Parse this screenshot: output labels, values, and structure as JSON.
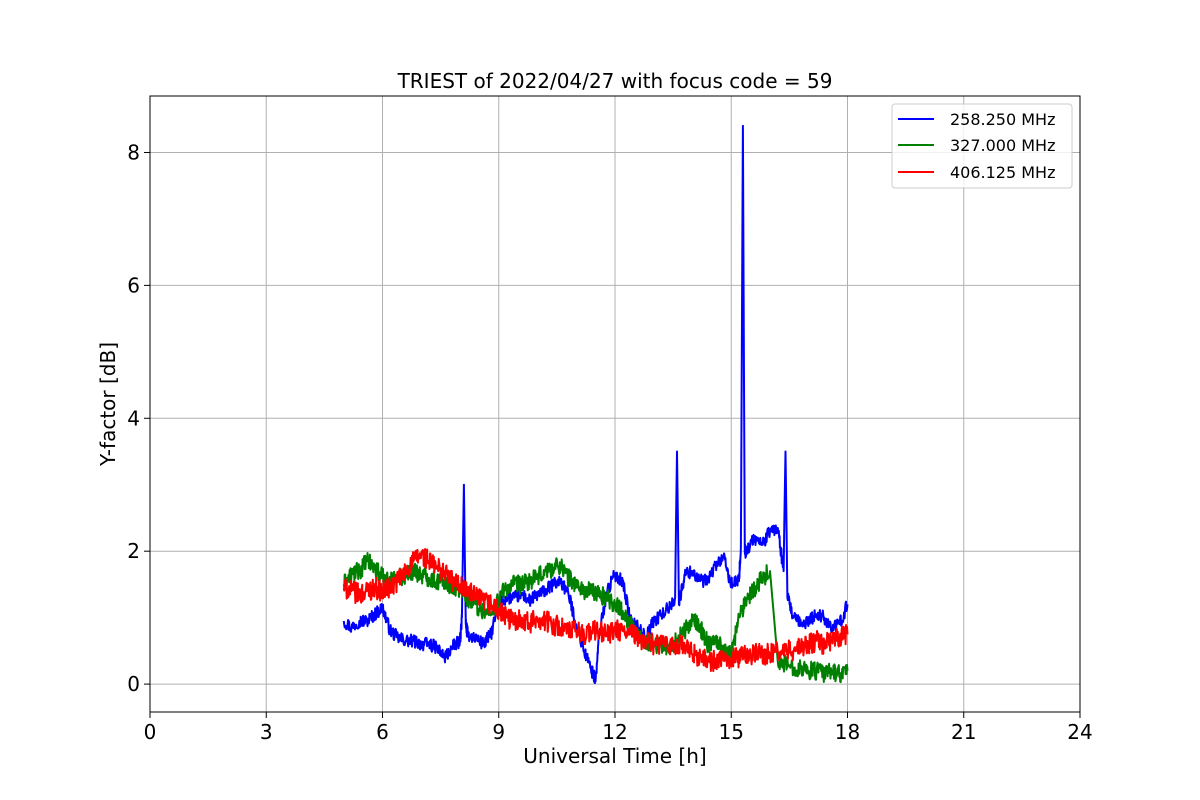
{
  "chart_data": {
    "type": "line",
    "title": "TRIEST of 2022/04/27 with focus code = 59",
    "xlabel": "Universal Time [h]",
    "ylabel": "Y-factor [dB]",
    "xlim": [
      0,
      24
    ],
    "ylim": [
      -0.42,
      8.85
    ],
    "xticks": [
      0,
      3,
      6,
      9,
      12,
      15,
      18,
      21,
      24
    ],
    "yticks": [
      0,
      2,
      4,
      6,
      8
    ],
    "grid": true,
    "legend_position": "top-right",
    "series": [
      {
        "name": "258.250 MHz",
        "color": "#0000ff",
        "x": [
          5.0,
          5.2,
          5.4,
          5.6,
          5.8,
          6.0,
          6.2,
          6.4,
          6.6,
          6.8,
          7.0,
          7.2,
          7.4,
          7.6,
          7.8,
          8.0,
          8.05,
          8.1,
          8.15,
          8.2,
          8.4,
          8.6,
          8.8,
          9.0,
          9.2,
          9.4,
          9.6,
          9.8,
          10.0,
          10.2,
          10.4,
          10.6,
          10.8,
          11.0,
          11.2,
          11.4,
          11.5,
          11.6,
          11.8,
          12.0,
          12.2,
          12.4,
          12.6,
          12.8,
          13.0,
          13.2,
          13.4,
          13.55,
          13.6,
          13.65,
          13.8,
          14.0,
          14.2,
          14.4,
          14.6,
          14.8,
          15.0,
          15.2,
          15.25,
          15.3,
          15.35,
          15.4,
          15.6,
          15.8,
          16.0,
          16.2,
          16.35,
          16.4,
          16.45,
          16.6,
          16.8,
          17.0,
          17.2,
          17.4,
          17.6,
          17.8,
          18.0
        ],
        "y": [
          0.95,
          0.85,
          0.95,
          0.95,
          1.05,
          1.15,
          0.8,
          0.7,
          0.65,
          0.65,
          0.6,
          0.6,
          0.55,
          0.4,
          0.55,
          0.65,
          1.0,
          3.0,
          0.9,
          0.75,
          0.7,
          0.6,
          0.75,
          1.2,
          1.3,
          1.3,
          1.35,
          1.25,
          1.35,
          1.4,
          1.5,
          1.55,
          1.35,
          0.9,
          0.5,
          0.2,
          0.05,
          0.8,
          1.4,
          1.65,
          1.55,
          0.95,
          0.85,
          0.7,
          0.95,
          1.05,
          1.15,
          1.3,
          3.5,
          1.2,
          1.65,
          1.7,
          1.55,
          1.55,
          1.8,
          1.9,
          1.5,
          1.55,
          2.1,
          8.4,
          2.0,
          2.0,
          2.2,
          2.1,
          2.3,
          2.35,
          1.7,
          3.5,
          1.3,
          1.0,
          0.9,
          0.95,
          1.05,
          1.0,
          0.85,
          0.9,
          1.2
        ]
      },
      {
        "name": "327.000 MHz",
        "color": "#008000",
        "x": [
          5.0,
          5.2,
          5.4,
          5.6,
          5.8,
          6.0,
          6.2,
          6.4,
          6.6,
          6.8,
          7.0,
          7.2,
          7.4,
          7.6,
          7.8,
          8.0,
          8.2,
          8.4,
          8.6,
          8.8,
          9.0,
          9.2,
          9.4,
          9.6,
          9.8,
          10.0,
          10.2,
          10.4,
          10.6,
          10.8,
          11.0,
          11.2,
          11.4,
          11.6,
          11.8,
          12.0,
          12.2,
          12.4,
          12.6,
          12.8,
          13.0,
          13.2,
          13.4,
          13.6,
          13.8,
          14.0,
          14.2,
          14.4,
          14.6,
          14.8,
          15.0,
          15.2,
          15.4,
          15.6,
          15.8,
          16.0,
          16.2,
          16.4,
          16.6,
          16.8,
          17.0,
          17.2,
          17.4,
          17.6,
          17.8,
          18.0
        ],
        "y": [
          1.5,
          1.65,
          1.7,
          1.85,
          1.75,
          1.6,
          1.55,
          1.6,
          1.65,
          1.7,
          1.65,
          1.6,
          1.55,
          1.55,
          1.45,
          1.45,
          1.3,
          1.2,
          1.1,
          1.05,
          1.3,
          1.45,
          1.5,
          1.5,
          1.55,
          1.6,
          1.7,
          1.75,
          1.8,
          1.6,
          1.5,
          1.4,
          1.4,
          1.35,
          1.3,
          1.2,
          1.1,
          0.9,
          0.7,
          0.65,
          0.6,
          0.6,
          0.55,
          0.65,
          0.8,
          0.95,
          0.85,
          0.6,
          0.7,
          0.5,
          0.45,
          1.0,
          1.3,
          1.45,
          1.6,
          1.7,
          0.35,
          0.3,
          0.25,
          0.25,
          0.2,
          0.2,
          0.15,
          0.2,
          0.15,
          0.2
        ]
      },
      {
        "name": "406.125 MHz",
        "color": "#ff0000",
        "x": [
          5.0,
          5.2,
          5.4,
          5.6,
          5.8,
          6.0,
          6.2,
          6.4,
          6.6,
          6.8,
          7.0,
          7.2,
          7.4,
          7.6,
          7.8,
          8.0,
          8.2,
          8.4,
          8.6,
          8.8,
          9.0,
          9.2,
          9.4,
          9.6,
          9.8,
          10.0,
          10.2,
          10.4,
          10.6,
          10.8,
          11.0,
          11.2,
          11.4,
          11.6,
          11.8,
          12.0,
          12.2,
          12.4,
          12.6,
          12.8,
          13.0,
          13.2,
          13.4,
          13.6,
          13.8,
          14.0,
          14.2,
          14.4,
          14.6,
          14.8,
          15.0,
          15.2,
          15.4,
          15.6,
          15.8,
          16.0,
          16.2,
          16.4,
          16.6,
          16.8,
          17.0,
          17.2,
          17.4,
          17.6,
          17.8,
          18.0
        ],
        "y": [
          1.45,
          1.4,
          1.35,
          1.4,
          1.45,
          1.4,
          1.45,
          1.55,
          1.7,
          1.85,
          1.95,
          1.85,
          1.75,
          1.7,
          1.55,
          1.5,
          1.4,
          1.3,
          1.25,
          1.2,
          1.1,
          1.0,
          0.95,
          1.0,
          0.9,
          1.0,
          0.95,
          0.9,
          0.85,
          0.8,
          0.8,
          0.75,
          0.8,
          0.8,
          0.75,
          0.8,
          0.8,
          0.75,
          0.7,
          0.65,
          0.6,
          0.6,
          0.55,
          0.6,
          0.55,
          0.45,
          0.4,
          0.35,
          0.35,
          0.35,
          0.4,
          0.4,
          0.45,
          0.45,
          0.45,
          0.45,
          0.5,
          0.5,
          0.5,
          0.55,
          0.6,
          0.65,
          0.6,
          0.65,
          0.7,
          0.75
        ]
      }
    ]
  }
}
